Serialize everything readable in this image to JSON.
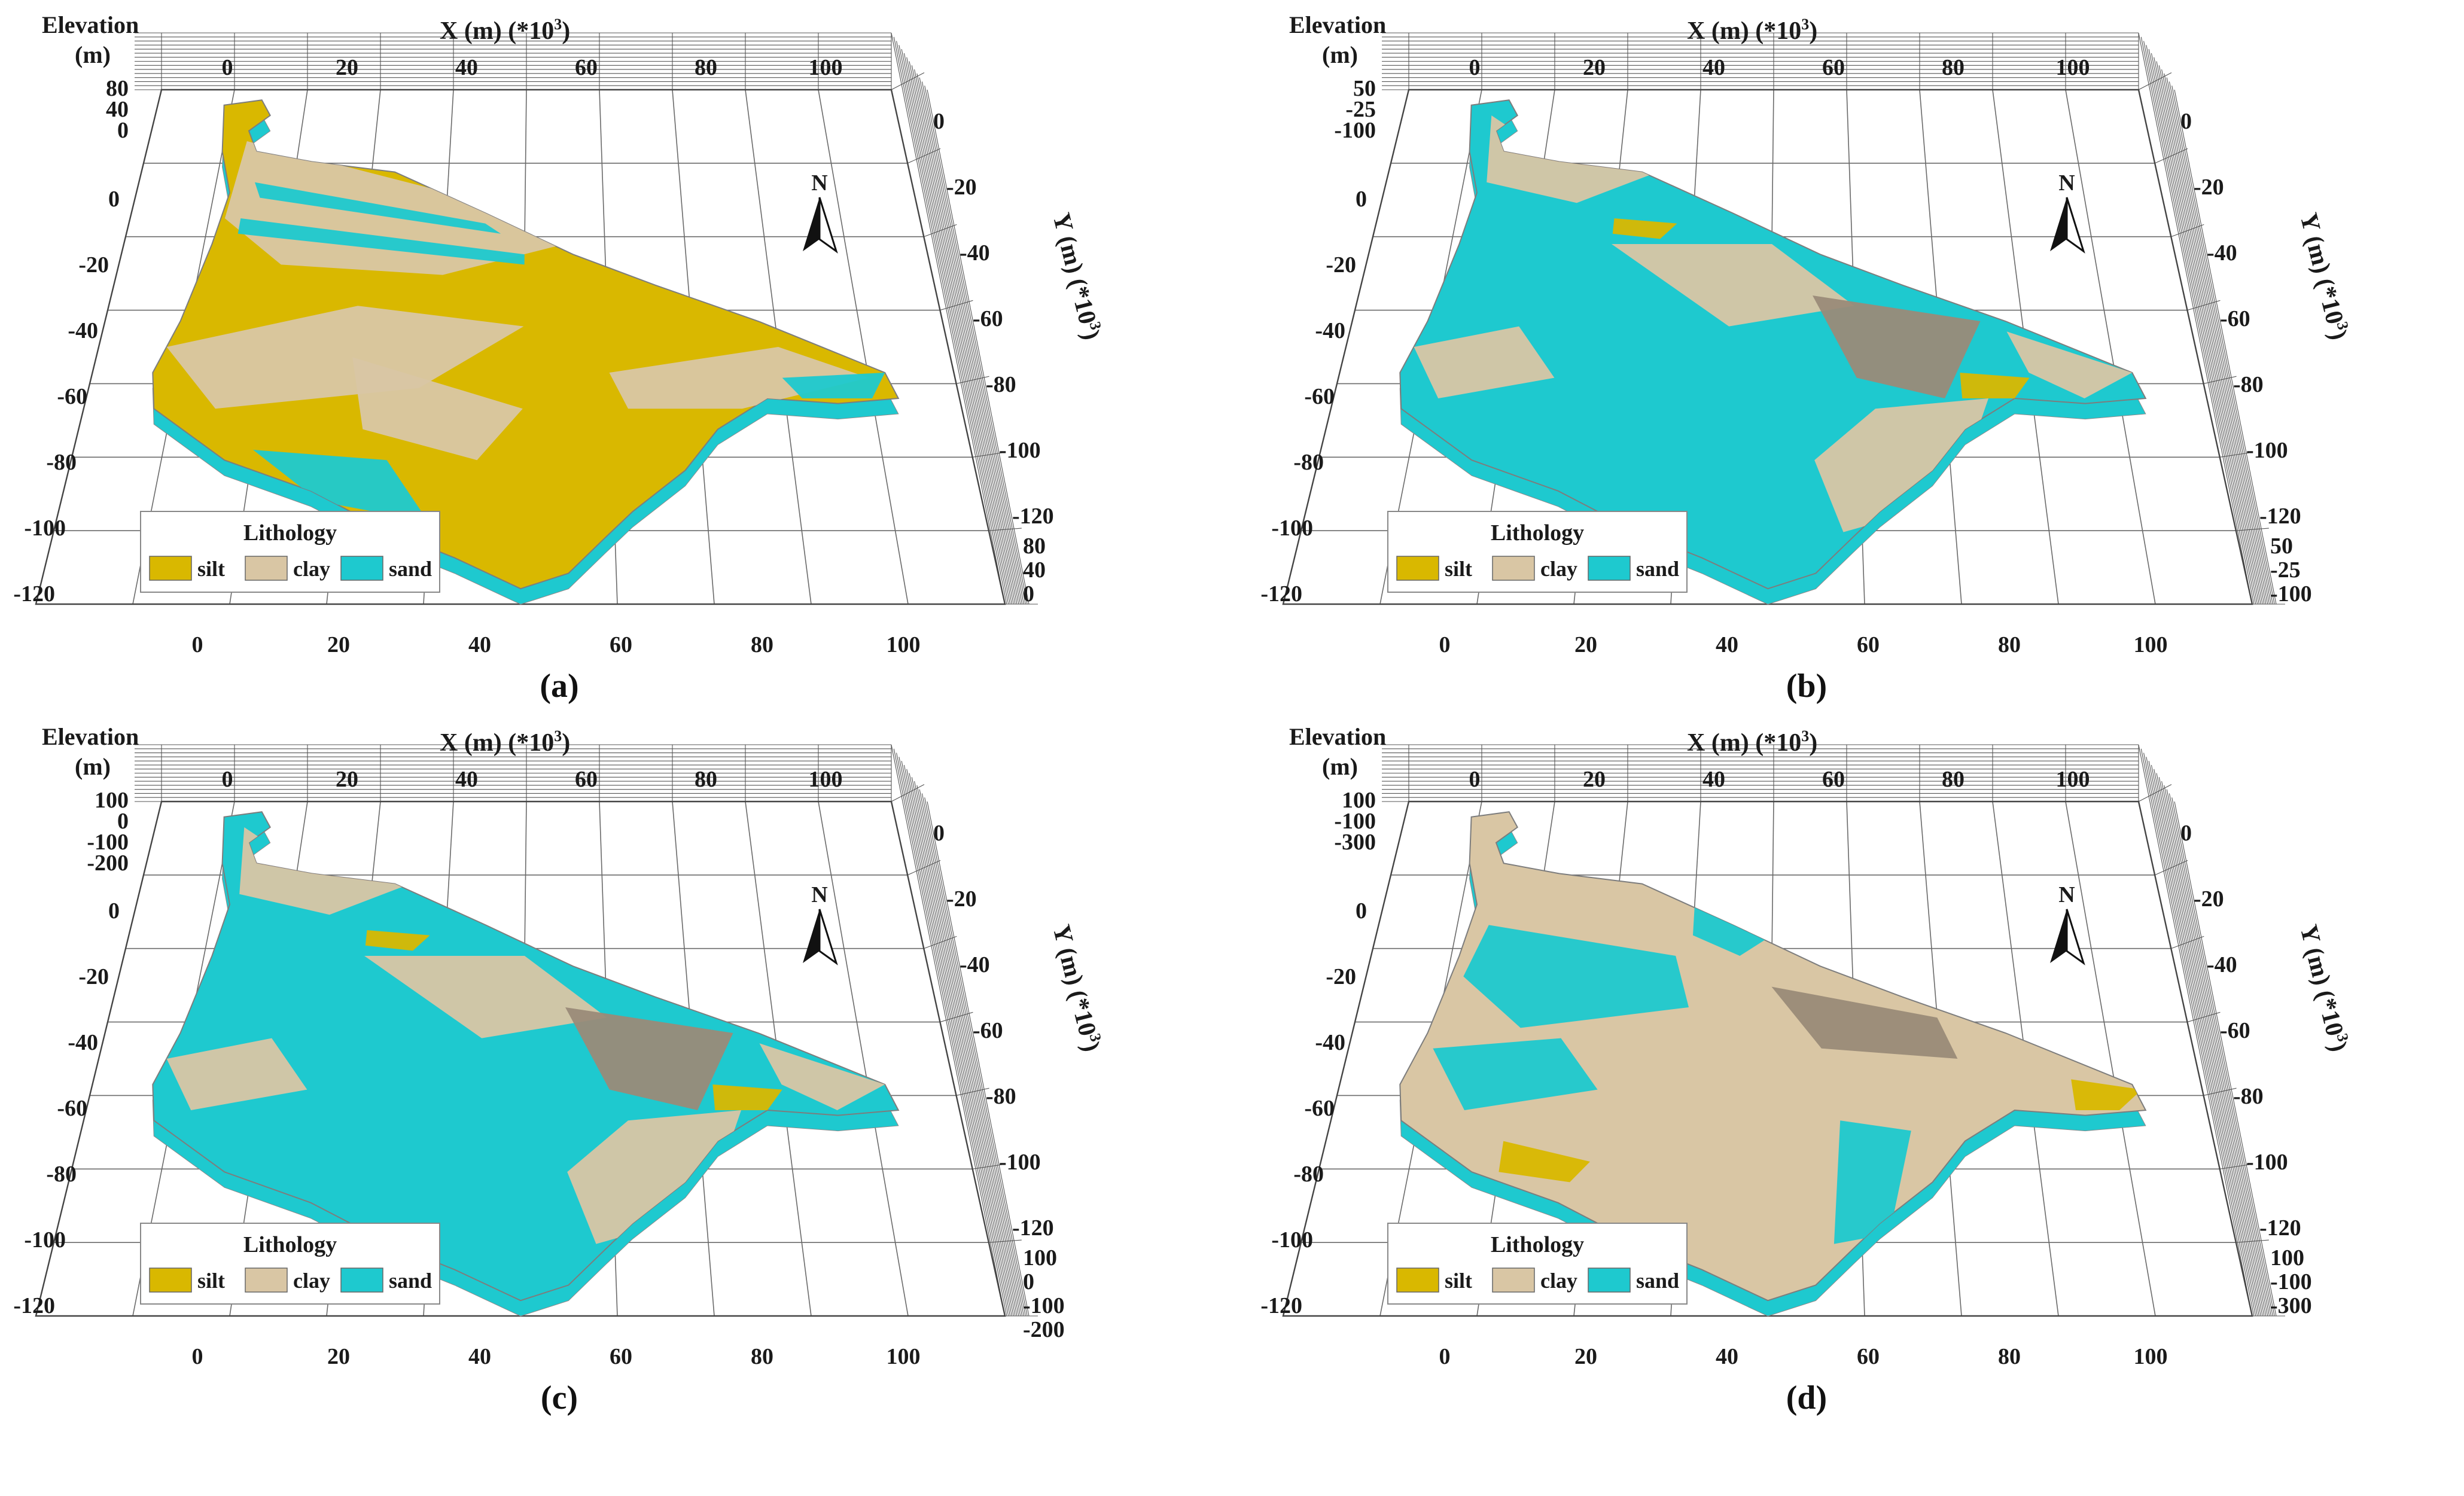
{
  "colors": {
    "silt": "#d9b800",
    "clay": "#d9c6a4",
    "sand": "#1ec9cf",
    "clay_dark": "#9a8b78"
  },
  "icons": {
    "north_arrow": "north-arrow-icon"
  },
  "panels": [
    {
      "id": "a",
      "caption": "(a)",
      "elev_label_1": "Elevation",
      "elev_label_2": "(m)",
      "x_label": "X (m) (*10",
      "x_sup": "3",
      "y_label": "Y (m) (*10",
      "y_sup": "3",
      "north": "N",
      "x_ticks": [
        "0",
        "20",
        "40",
        "60",
        "80",
        "100"
      ],
      "left_ticks": [
        "0",
        "-20",
        "-40",
        "-60",
        "-80",
        "-100",
        "-120"
      ],
      "top_elev_ticks": [
        "80",
        "40",
        "0"
      ],
      "right_elev_ticks": [
        "80",
        "40",
        "0"
      ],
      "y_ticks": [
        "0",
        "-20",
        "-40",
        "-60",
        "-80",
        "-100",
        "-120"
      ],
      "dominant": "silt",
      "legend": {
        "title": "Lithology",
        "items": [
          "silt",
          "clay",
          "sand"
        ]
      }
    },
    {
      "id": "b",
      "caption": "(b)",
      "elev_label_1": "Elevation",
      "elev_label_2": "(m)",
      "x_label": "X (m) (*10",
      "x_sup": "3",
      "y_label": "Y (m) (*10",
      "y_sup": "3",
      "north": "N",
      "x_ticks": [
        "0",
        "20",
        "40",
        "60",
        "80",
        "100"
      ],
      "left_ticks": [
        "0",
        "-20",
        "-40",
        "-60",
        "-80",
        "-100",
        "-120"
      ],
      "top_elev_ticks": [
        "50",
        "-25",
        "-100"
      ],
      "right_elev_ticks": [
        "50",
        "-25",
        "-100"
      ],
      "y_ticks": [
        "0",
        "-20",
        "-40",
        "-60",
        "-80",
        "-100",
        "-120"
      ],
      "dominant": "sand",
      "legend": {
        "title": "Lithology",
        "items": [
          "silt",
          "clay",
          "sand"
        ]
      }
    },
    {
      "id": "c",
      "caption": "(c)",
      "elev_label_1": "Elevation",
      "elev_label_2": "(m)",
      "x_label": "X (m) (*10",
      "x_sup": "3",
      "y_label": "Y (m) (*10",
      "y_sup": "3",
      "north": "N",
      "x_ticks": [
        "0",
        "20",
        "40",
        "60",
        "80",
        "100"
      ],
      "left_ticks": [
        "0",
        "-20",
        "-40",
        "-60",
        "-80",
        "-100",
        "-120"
      ],
      "top_elev_ticks": [
        "100",
        "0",
        "-100",
        "-200"
      ],
      "right_elev_ticks": [
        "100",
        "0",
        "-100",
        "-200"
      ],
      "y_ticks": [
        "0",
        "-20",
        "-40",
        "-60",
        "-80",
        "-100",
        "-120"
      ],
      "dominant": "sand",
      "legend": {
        "title": "Lithology",
        "items": [
          "silt",
          "clay",
          "sand"
        ]
      }
    },
    {
      "id": "d",
      "caption": "(d)",
      "elev_label_1": "Elevation",
      "elev_label_2": "(m)",
      "x_label": "X (m) (*10",
      "x_sup": "3",
      "y_label": "Y (m) (*10",
      "y_sup": "3",
      "north": "N",
      "x_ticks": [
        "0",
        "20",
        "40",
        "60",
        "80",
        "100"
      ],
      "left_ticks": [
        "0",
        "-20",
        "-40",
        "-60",
        "-80",
        "-100",
        "-120"
      ],
      "top_elev_ticks": [
        "100",
        "-100",
        "-300"
      ],
      "right_elev_ticks": [
        "100",
        "-100",
        "-300"
      ],
      "y_ticks": [
        "0",
        "-20",
        "-40",
        "-60",
        "-80",
        "-100",
        "-120"
      ],
      "dominant": "clay",
      "legend": {
        "title": "Lithology",
        "items": [
          "silt",
          "clay",
          "sand"
        ]
      }
    }
  ]
}
